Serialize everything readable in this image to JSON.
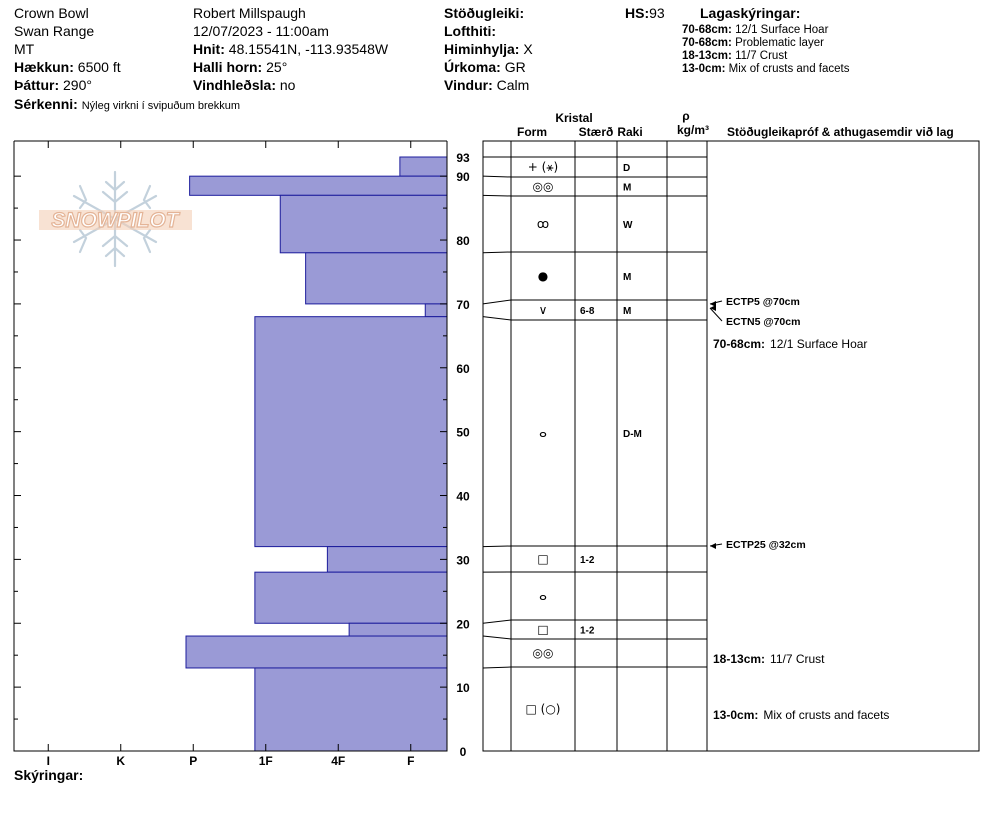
{
  "header": {
    "location": "Crown Bowl",
    "range": "Swan Range",
    "state": "MT",
    "elevation_label": "Hækkun:",
    "elevation_value": "6500 ft",
    "aspect_label": "Þáttur:",
    "aspect_value": "290°",
    "features_label": "Sérkenni:",
    "features_value": "Nýleg virkni í svipuðum brekkum",
    "observer": "Robert Millspaugh",
    "datetime": "12/07/2023 - 11:00am",
    "coords_label": "Hnit:",
    "coords_value": "48.15541N, -113.93548W",
    "slope_label": "Halli horn:",
    "slope_value": "25°",
    "wind_loading_label": "Vindhleðsla:",
    "wind_loading_value": "no",
    "stability_label": "Stöðugleiki:",
    "air_temp_label": "Lofthiti:",
    "sky_label": "Himinhylja:",
    "sky_value": "X",
    "precip_label": "Úrkoma:",
    "precip_value": "GR",
    "wind_label": "Vindur:",
    "wind_value": "Calm",
    "hs_label": "HS:",
    "hs_value": "93",
    "layer_legend_title": "Lagaskýringar:",
    "layer_legend": [
      {
        "range": "70-68cm:",
        "text": "12/1 Surface Hoar"
      },
      {
        "range": "70-68cm:",
        "text": "Problematic layer"
      },
      {
        "range": "18-13cm:",
        "text": "11/7 Crust"
      },
      {
        "range": "13-0cm:",
        "text": "Mix of crusts and facets"
      }
    ],
    "footer_label": "Skýringar:"
  },
  "columns": {
    "crystal": "Kristal",
    "form": "Form",
    "size": "Stærð",
    "moisture": "Raki",
    "rho": "ρ",
    "density_unit": "kg/m³",
    "tests": "Stöðugleikapróf & athugasemdir við lag"
  },
  "logo_text": "SNOWPILOT",
  "chart_data": {
    "type": "bar",
    "description_axis_y": "depth cm",
    "y_ticks": [
      0,
      10,
      20,
      30,
      40,
      50,
      60,
      70,
      80,
      90
    ],
    "y_top_label": "93",
    "ylim": [
      0,
      93
    ],
    "hardness_ticks": [
      "I",
      "K",
      "P",
      "1F",
      "4F",
      "F"
    ],
    "hardness_scale": {
      "F": 0,
      "4F": 1,
      "1F": 2,
      "P": 3,
      "K": 4,
      "I": 5
    },
    "hardness_layers": [
      {
        "top": 93,
        "bottom": 90,
        "hardness": 0.65
      },
      {
        "top": 90,
        "bottom": 87,
        "hardness": 3.55
      },
      {
        "top": 87,
        "bottom": 78,
        "hardness": 2.3
      },
      {
        "top": 78,
        "bottom": 70,
        "hardness": 1.95
      },
      {
        "top": 70,
        "bottom": 68,
        "hardness": 0.3
      },
      {
        "top": 68,
        "bottom": 32,
        "hardness": 2.65
      },
      {
        "top": 32,
        "bottom": 28,
        "hardness": 1.65
      },
      {
        "top": 28,
        "bottom": 20,
        "hardness": 2.65
      },
      {
        "top": 20,
        "bottom": 18,
        "hardness": 1.35
      },
      {
        "top": 18,
        "bottom": 13,
        "hardness": 3.6
      },
      {
        "top": 13,
        "bottom": 0,
        "hardness": 2.65
      }
    ],
    "layer_rows": [
      {
        "top": 93,
        "bottom": 90,
        "form": "+ (⚹)",
        "size": "",
        "moisture": "D"
      },
      {
        "top": 90,
        "bottom": 87,
        "form": "◎◎",
        "size": "",
        "moisture": "M"
      },
      {
        "top": 87,
        "bottom": 78,
        "form": "ꝏ",
        "size": "",
        "moisture": "W"
      },
      {
        "top": 78,
        "bottom": 70,
        "form": "●",
        "size": "",
        "moisture": "M"
      },
      {
        "top": 70,
        "bottom": 68,
        "form": "∨",
        "size": "6-8",
        "moisture": "M"
      },
      {
        "top": 68,
        "bottom": 32,
        "form": "ⴰ",
        "size": "",
        "moisture": "D-M"
      },
      {
        "top": 32,
        "bottom": 28,
        "form": "□",
        "size": "1-2",
        "moisture": ""
      },
      {
        "top": 28,
        "bottom": 20,
        "form": "ⴰ",
        "size": "",
        "moisture": ""
      },
      {
        "top": 20,
        "bottom": 18,
        "form": "□",
        "size": "1-2",
        "moisture": ""
      },
      {
        "top": 18,
        "bottom": 13,
        "form": "◎◎",
        "size": "",
        "moisture": ""
      },
      {
        "top": 13,
        "bottom": 0,
        "form": "□ (○)",
        "size": "",
        "moisture": ""
      }
    ],
    "tests": [
      {
        "depth": 70,
        "text": "ECTP5 @70cm"
      },
      {
        "depth": 68,
        "text": "ECTN5 @70cm"
      },
      {
        "depth": 32,
        "text": "ECTP25 @32cm"
      }
    ],
    "comments": [
      {
        "depth": 66,
        "range": "70-68cm:",
        "text": "12/1 Surface Hoar"
      },
      {
        "depth": 15,
        "range": "18-13cm:",
        "text": "11/7 Crust"
      },
      {
        "depth": 6,
        "range": "13-0cm:",
        "text": "Mix of crusts and facets"
      }
    ]
  }
}
